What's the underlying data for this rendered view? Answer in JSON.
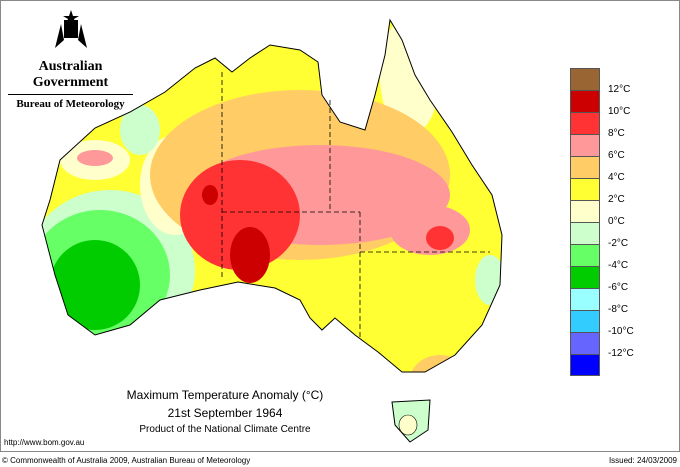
{
  "header": {
    "government": "Australian Government",
    "bureau": "Bureau of Meteorology",
    "logo": "commonwealth-coat-of-arms"
  },
  "legend": {
    "colors": [
      "#996633",
      "#cc0000",
      "#ff3333",
      "#ff9999",
      "#ffcc66",
      "#ffff33",
      "#ffffcc",
      "#ccffcc",
      "#66ff66",
      "#00cc00",
      "#99ffff",
      "#33ccff",
      "#6666ff",
      "#0000ff"
    ],
    "labels": [
      "12°C",
      "10°C",
      "8°C",
      "6°C",
      "4°C",
      "2°C",
      "0°C",
      "-2°C",
      "-4°C",
      "-6°C",
      "-8°C",
      "-10°C",
      "-12°C"
    ]
  },
  "title": {
    "line1": "Maximum Temperature Anomaly (°C)",
    "line2": "21st September 1964",
    "line3": "Product of the National Climate Centre"
  },
  "footer": {
    "url": "http://www.bom.gov.au",
    "copyright": "© Commonwealth of Australia 2009, Australian Bureau of Meteorology",
    "issued": "Issued: 24/03/2009"
  }
}
